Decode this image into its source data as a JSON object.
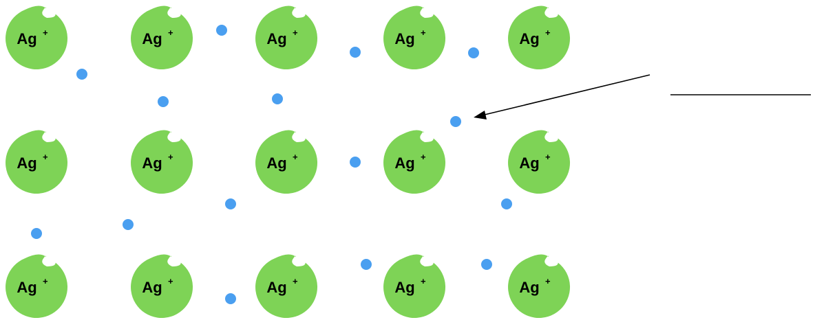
{
  "diagram": {
    "ion_label": "Ag",
    "ion_charge": "+",
    "ion_color": "#7ed356",
    "electron_color": "#4a9ff0",
    "line_color": "#000000",
    "answer_blank": ""
  }
}
